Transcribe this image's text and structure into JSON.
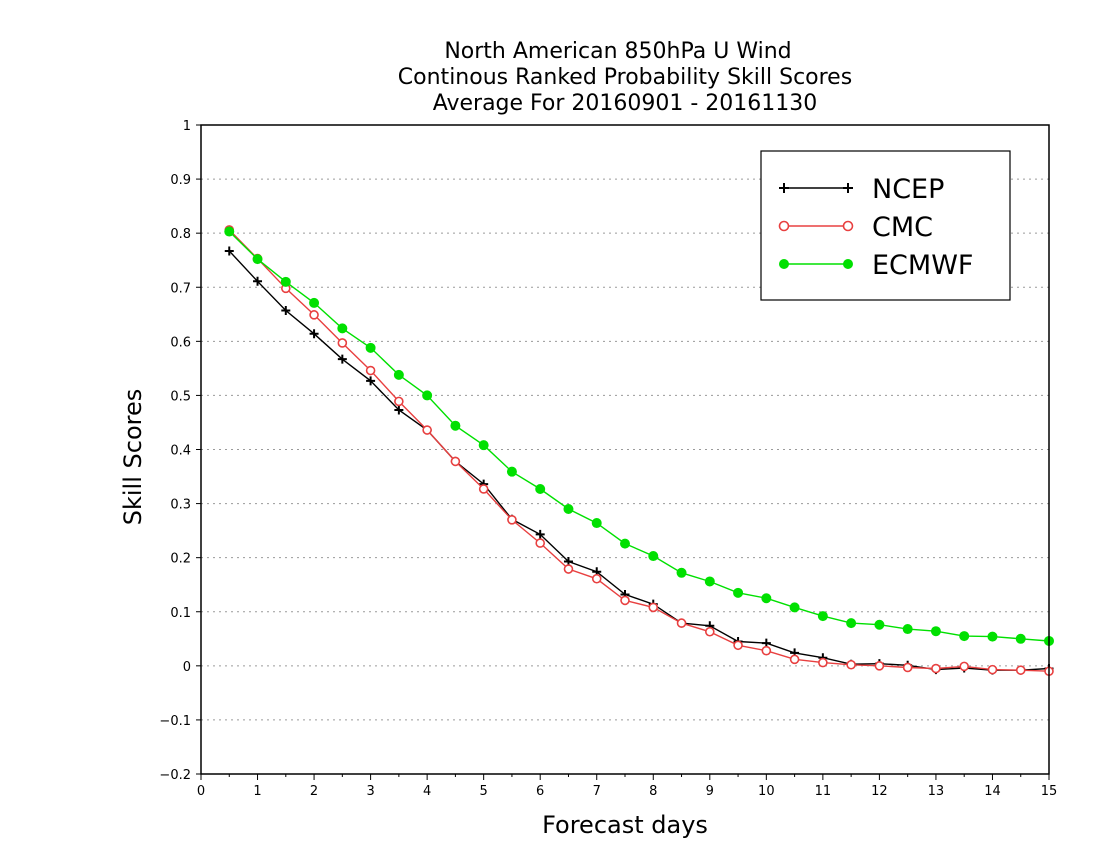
{
  "chart_data": {
    "type": "line",
    "title": [
      "North American 850hPa U Wind",
      "Continous Ranked Probability Skill Scores",
      "Average For 20160901 - 20161130"
    ],
    "xlabel": "Forecast days",
    "ylabel": "Skill Scores",
    "xlim": [
      0,
      15
    ],
    "ylim": [
      -0.2,
      1
    ],
    "xticks": [
      "0",
      "1",
      "2",
      "3",
      "4",
      "5",
      "6",
      "7",
      "8",
      "9",
      "10",
      "11",
      "12",
      "13",
      "14",
      "15"
    ],
    "yticks": [
      "−0.2",
      "−0.1",
      "0",
      "0.1",
      "0.2",
      "0.3",
      "0.4",
      "0.5",
      "0.6",
      "0.7",
      "0.8",
      "0.9",
      "1"
    ],
    "grid": true,
    "legend_position": "top-right",
    "x": [
      0.5,
      1,
      1.5,
      2,
      2.5,
      3,
      3.5,
      4,
      4.5,
      5,
      5.5,
      6,
      6.5,
      7,
      7.5,
      8,
      8.5,
      9,
      9.5,
      10,
      10.5,
      11,
      11.5,
      12,
      12.5,
      13,
      13.5,
      14,
      14.5,
      15
    ],
    "series": [
      {
        "name": "NCEP",
        "color": "#000000",
        "marker": "plus",
        "values": [
          0.767,
          0.711,
          0.657,
          0.614,
          0.567,
          0.527,
          0.473,
          0.436,
          0.378,
          0.336,
          0.271,
          0.243,
          0.193,
          0.174,
          0.132,
          0.114,
          0.079,
          0.074,
          0.045,
          0.042,
          0.024,
          0.015,
          0.003,
          0.004,
          0.001,
          -0.007,
          -0.004,
          -0.008,
          -0.008,
          -0.005
        ]
      },
      {
        "name": "CMC",
        "color": "#e84040",
        "marker": "open-circle",
        "values": [
          0.806,
          0.753,
          0.698,
          0.649,
          0.597,
          0.546,
          0.489,
          0.436,
          0.378,
          0.327,
          0.27,
          0.227,
          0.179,
          0.161,
          0.121,
          0.108,
          0.079,
          0.063,
          0.038,
          0.028,
          0.012,
          0.006,
          0.002,
          0.0,
          -0.003,
          -0.005,
          -0.001,
          -0.007,
          -0.008,
          -0.01
        ]
      },
      {
        "name": "ECMWF",
        "color": "#00e000",
        "marker": "filled-circle",
        "values": [
          0.803,
          0.752,
          0.71,
          0.671,
          0.624,
          0.588,
          0.538,
          0.5,
          0.444,
          0.408,
          0.359,
          0.327,
          0.29,
          0.264,
          0.226,
          0.203,
          0.172,
          0.156,
          0.135,
          0.125,
          0.108,
          0.092,
          0.079,
          0.076,
          0.068,
          0.064,
          0.055,
          0.054,
          0.05,
          0.046
        ]
      }
    ]
  }
}
